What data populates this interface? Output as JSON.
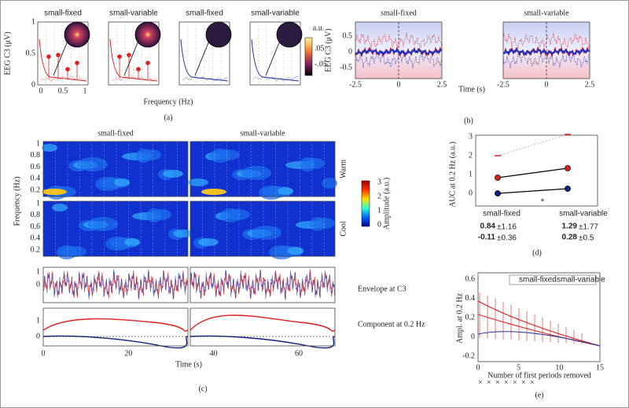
{
  "panel_a": {
    "titles": [
      "small-fixed",
      "small-variable",
      "small-fixed",
      "small-variable"
    ],
    "ylabel": "EEG C3 (μV)",
    "yticks": [
      "0",
      "0.5",
      "1"
    ],
    "xticks": [
      "0",
      "0.5",
      "1"
    ],
    "xlabel": "Frequency (Hz)",
    "colorbar_title": "a.u.",
    "colorbar_ticks": [
      ".05",
      "-.05"
    ],
    "label": "(a)"
  },
  "panel_b": {
    "titles": [
      "small-fixed",
      "small-variable"
    ],
    "ylabel": "EEG C3 (μV)",
    "yticks": [
      "0.5",
      "0",
      "-0.5"
    ],
    "xticks": [
      "-2.5",
      "0",
      "2.5"
    ],
    "xlabel": "Time (s)",
    "label": "(b)"
  },
  "panel_c": {
    "titles": [
      "small-fixed",
      "small-variable"
    ],
    "ylabel": "Frequency (Hz)",
    "yticks": [
      "1",
      "0.8",
      "0.6",
      "0.4",
      "0.2"
    ],
    "row_labels": [
      "Warm",
      "Cool"
    ],
    "colorbar_ticks": [
      "3",
      "2",
      "1",
      "0"
    ],
    "colorbar_label": "Amplitude (a.u.)",
    "envelope_yticks": [
      "1",
      "0"
    ],
    "envelope_label": "Envelope at C3",
    "component_yticks": [
      "1",
      "0"
    ],
    "component_label": "Component at 0.2 Hz",
    "xticks": [
      "0",
      "20",
      "40",
      "60"
    ],
    "xlabel": "Time (s)",
    "label": "(c)"
  },
  "panel_d": {
    "ylabel": "AUC at 0.2 Hz (a.u.)",
    "yticks": [
      "3",
      "2",
      "1",
      "0"
    ],
    "groups": [
      {
        "name": "small-fixed",
        "red_mean": "0.84",
        "red_sd": "±1.16",
        "blue_mean": "-0.11",
        "blue_sd": "±0.36"
      },
      {
        "name": "small-variable",
        "red_mean": "1.29",
        "red_sd": "±1.77",
        "blue_mean": "0.28",
        "blue_sd": "±0.5"
      }
    ],
    "label": "(d)"
  },
  "panel_e": {
    "ylabel": "Ampl. at 0.2 Hz",
    "yticks": [
      "0.6",
      "0.4",
      "0.2",
      "0",
      "-0.2"
    ],
    "xticks": [
      "0",
      "5",
      "10",
      "15"
    ],
    "xlabel": "Number of first periods removed",
    "legend": [
      "small-fixed",
      "small-variable"
    ],
    "label": "(e)"
  }
}
